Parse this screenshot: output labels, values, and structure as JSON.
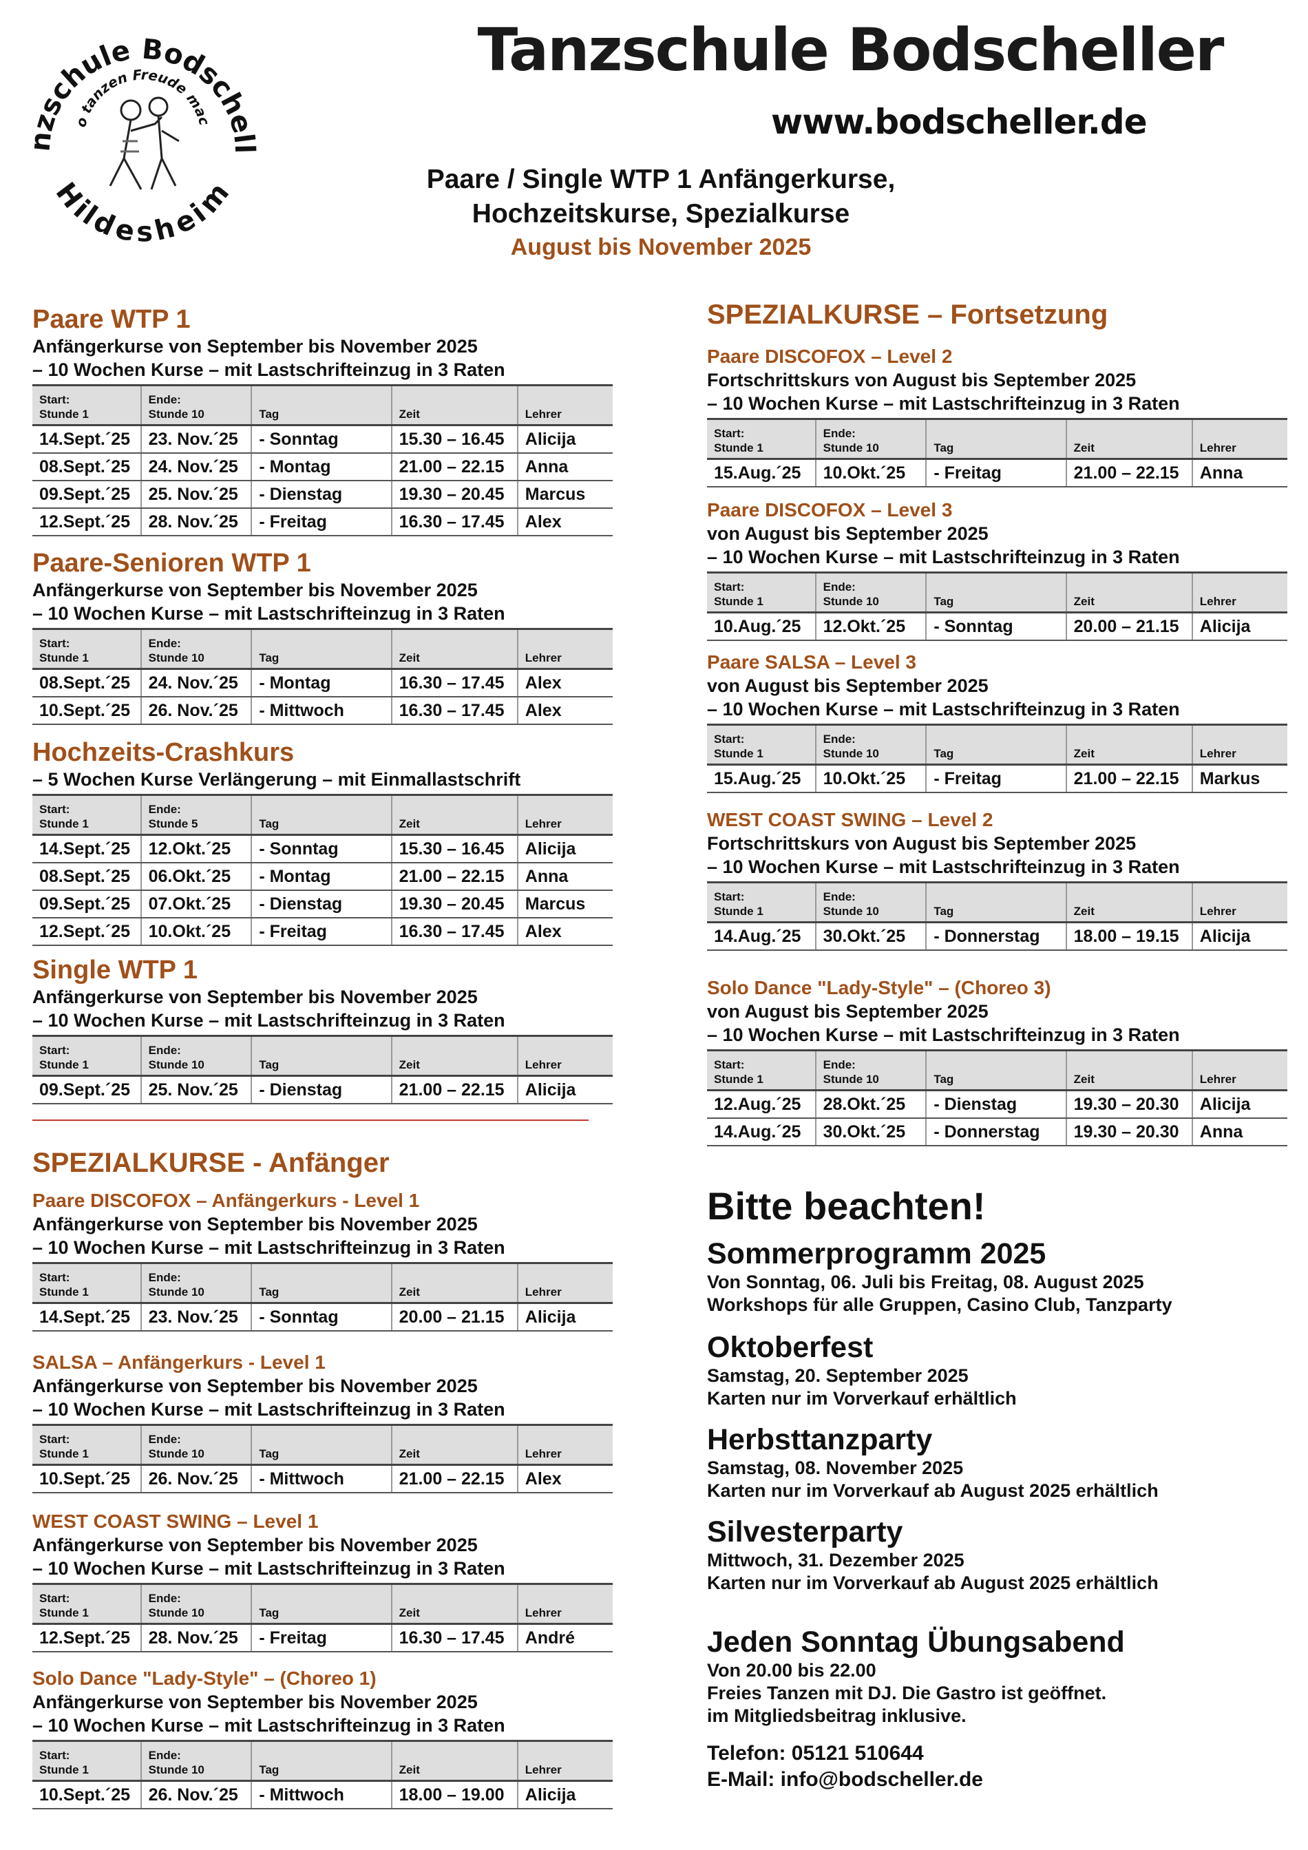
{
  "header": {
    "logo_top": "Tanzschule Bodscheller",
    "logo_motto": "Wo tanzen Freude macht",
    "logo_bottom": "Hildesheim",
    "title": "Tanzschule Bodscheller",
    "url": "www.bodscheller.de",
    "subtitle": [
      "Paare / Single WTP 1 Anfängerkurse,",
      "Hochzeitskurse, Spezialkurse"
    ],
    "period": "August bis November 2025"
  },
  "main_courses": [
    {
      "title": "Paare WTP 1",
      "lines": [
        "Anfängerkurse von September bis November 2025",
        "– 10 Wochen Kurse – mit Lastschrifteinzug in 3 Raten"
      ],
      "table": {
        "header": [
          [
            "Start:",
            "Stunde 1"
          ],
          [
            "Ende:",
            "Stunde 10"
          ],
          [
            "Tag"
          ],
          [
            "Zeit"
          ],
          [
            "Lehrer"
          ]
        ],
        "rows": [
          [
            "14.Sept.´25",
            "23. Nov.´25",
            "- Sonntag",
            "15.30 – 16.45",
            "Alicija"
          ],
          [
            "08.Sept.´25",
            "24. Nov.´25",
            "- Montag",
            "21.00 – 22.15",
            "Anna"
          ],
          [
            "09.Sept.´25",
            "25. Nov.´25",
            "- Dienstag",
            "19.30 – 20.45",
            "Marcus"
          ],
          [
            "12.Sept.´25",
            "28. Nov.´25",
            "- Freitag",
            "16.30 – 17.45",
            "Alex"
          ]
        ]
      }
    },
    {
      "title": "Paare-Senioren WTP 1",
      "lines": [
        "Anfängerkurse von September bis November 2025",
        "– 10 Wochen Kurse – mit Lastschrifteinzug in 3 Raten"
      ],
      "table": {
        "header": [
          [
            "Start:",
            "Stunde 1"
          ],
          [
            "Ende:",
            "Stunde 10"
          ],
          [
            "Tag"
          ],
          [
            "Zeit"
          ],
          [
            "Lehrer"
          ]
        ],
        "rows": [
          [
            "08.Sept.´25",
            "24. Nov.´25",
            "- Montag",
            "16.30 – 17.45",
            "Alex"
          ],
          [
            "10.Sept.´25",
            "26. Nov.´25",
            "- Mittwoch",
            "16.30 – 17.45",
            "Alex"
          ]
        ]
      }
    },
    {
      "title": "Hochzeits-Crashkurs",
      "lines": [
        "– 5 Wochen Kurse Verlängerung – mit Einmallastschrift"
      ],
      "table": {
        "header": [
          [
            "Start:",
            "Stunde 1"
          ],
          [
            "Ende:",
            "Stunde 5"
          ],
          [
            "Tag"
          ],
          [
            "Zeit"
          ],
          [
            "Lehrer"
          ]
        ],
        "rows": [
          [
            "14.Sept.´25",
            "12.Okt.´25",
            "- Sonntag",
            "15.30 – 16.45",
            "Alicija"
          ],
          [
            "08.Sept.´25",
            "06.Okt.´25",
            "- Montag",
            "21.00 – 22.15",
            "Anna"
          ],
          [
            "09.Sept.´25",
            "07.Okt.´25",
            "- Dienstag",
            "19.30 – 20.45",
            "Marcus"
          ],
          [
            "12.Sept.´25",
            "10.Okt.´25",
            "- Freitag",
            "16.30 – 17.45",
            "Alex"
          ]
        ]
      }
    },
    {
      "title": "Single WTP 1",
      "lines": [
        "Anfängerkurse von September bis November 2025",
        "– 10 Wochen Kurse – mit Lastschrifteinzug in 3 Raten"
      ],
      "table": {
        "header": [
          [
            "Start:",
            "Stunde 1"
          ],
          [
            "Ende:",
            "Stunde 10"
          ],
          [
            "Tag"
          ],
          [
            "Zeit"
          ],
          [
            "Lehrer"
          ]
        ],
        "rows": [
          [
            "09.Sept.´25",
            "25. Nov.´25",
            "- Dienstag",
            "21.00 – 22.15",
            "Alicija"
          ]
        ]
      }
    }
  ],
  "special_beginners": {
    "title": "SPEZIALKURSE - Anfänger",
    "courses": [
      {
        "title": "Paare DISCOFOX – Anfängerkurs - Level 1",
        "lines": [
          "Anfängerkurse von September bis November 2025",
          "– 10 Wochen Kurse – mit Lastschrifteinzug in 3 Raten"
        ],
        "table": {
          "header": [
            [
              "Start:",
              "Stunde 1"
            ],
            [
              "Ende:",
              "Stunde 10"
            ],
            [
              "Tag"
            ],
            [
              "Zeit"
            ],
            [
              "Lehrer"
            ]
          ],
          "rows": [
            [
              "14.Sept.´25",
              "23. Nov.´25",
              "- Sonntag",
              "20.00 – 21.15",
              "Alicija"
            ]
          ]
        }
      },
      {
        "title": "SALSA – Anfängerkurs - Level 1",
        "lines": [
          "Anfängerkurse von September bis November 2025",
          "– 10 Wochen Kurse – mit Lastschrifteinzug in 3 Raten"
        ],
        "table": {
          "header": [
            [
              "Start:",
              "Stunde 1"
            ],
            [
              "Ende:",
              "Stunde 10"
            ],
            [
              "Tag"
            ],
            [
              "Zeit"
            ],
            [
              "Lehrer"
            ]
          ],
          "rows": [
            [
              "10.Sept.´25",
              "26. Nov.´25",
              "- Mittwoch",
              "21.00 – 22.15",
              "Alex"
            ]
          ]
        }
      },
      {
        "title": "WEST COAST SWING – Level 1",
        "lines": [
          "Anfängerkurse von September bis November 2025",
          "– 10 Wochen Kurse – mit Lastschrifteinzug in 3 Raten"
        ],
        "table": {
          "header": [
            [
              "Start:",
              "Stunde 1"
            ],
            [
              "Ende:",
              "Stunde 10"
            ],
            [
              "Tag"
            ],
            [
              "Zeit"
            ],
            [
              "Lehrer"
            ]
          ],
          "rows": [
            [
              "12.Sept.´25",
              "28. Nov.´25",
              "- Freitag",
              "16.30 – 17.45",
              "André"
            ]
          ]
        }
      },
      {
        "title": "Solo Dance \"Lady-Style\" – (Choreo 1)",
        "lines": [
          "Anfängerkurse von September bis November 2025",
          "– 10 Wochen Kurse – mit Lastschrifteinzug in 3 Raten"
        ],
        "table": {
          "header": [
            [
              "Start:",
              "Stunde 1"
            ],
            [
              "Ende:",
              "Stunde 10"
            ],
            [
              "Tag"
            ],
            [
              "Zeit"
            ],
            [
              "Lehrer"
            ]
          ],
          "rows": [
            [
              "10.Sept.´25",
              "26. Nov.´25",
              "- Mittwoch",
              "18.00 – 19.00",
              "Alicija"
            ]
          ]
        }
      }
    ]
  },
  "special_continued": {
    "title": "SPEZIALKURSE – Fortsetzung",
    "courses": [
      {
        "title": "Paare DISCOFOX – Level 2",
        "lines": [
          "Fortschrittskurs von August bis September 2025",
          "– 10 Wochen Kurse – mit Lastschrifteinzug in 3 Raten"
        ],
        "table": {
          "header": [
            [
              "Start:",
              "Stunde 1"
            ],
            [
              "Ende:",
              "Stunde 10"
            ],
            [
              "Tag"
            ],
            [
              "Zeit"
            ],
            [
              "Lehrer"
            ]
          ],
          "rows": [
            [
              "15.Aug.´25",
              "10.Okt.´25",
              "- Freitag",
              "21.00 – 22.15",
              "Anna"
            ]
          ]
        }
      },
      {
        "title": "Paare DISCOFOX – Level 3",
        "lines": [
          "von August bis September 2025",
          "– 10 Wochen Kurse – mit Lastschrifteinzug in 3 Raten"
        ],
        "table": {
          "header": [
            [
              "Start:",
              "Stunde 1"
            ],
            [
              "Ende:",
              "Stunde 10"
            ],
            [
              "Tag"
            ],
            [
              "Zeit"
            ],
            [
              "Lehrer"
            ]
          ],
          "rows": [
            [
              "10.Aug.´25",
              "12.Okt.´25",
              "- Sonntag",
              "20.00 – 21.15",
              "Alicija"
            ]
          ]
        }
      },
      {
        "title": "Paare SALSA – Level 3",
        "lines": [
          "von August bis September 2025",
          "– 10 Wochen Kurse – mit Lastschrifteinzug in 3 Raten"
        ],
        "table": {
          "header": [
            [
              "Start:",
              "Stunde 1"
            ],
            [
              "Ende:",
              "Stunde 10"
            ],
            [
              "Tag"
            ],
            [
              "Zeit"
            ],
            [
              "Lehrer"
            ]
          ],
          "rows": [
            [
              "15.Aug.´25",
              "10.Okt.´25",
              "- Freitag",
              "21.00 – 22.15",
              "Markus"
            ]
          ]
        }
      },
      {
        "title": "WEST COAST SWING – Level 2",
        "lines": [
          "Fortschrittskurs von August bis September 2025",
          "– 10 Wochen Kurse – mit Lastschrifteinzug in 3 Raten"
        ],
        "table": {
          "header": [
            [
              "Start:",
              "Stunde 1"
            ],
            [
              "Ende:",
              "Stunde 10"
            ],
            [
              "Tag"
            ],
            [
              "Zeit"
            ],
            [
              "Lehrer"
            ]
          ],
          "rows": [
            [
              "14.Aug.´25",
              "30.Okt.´25",
              "- Donnerstag",
              "18.00 – 19.15",
              "Alicija"
            ]
          ]
        }
      },
      {
        "title": "Solo Dance \"Lady-Style\" – (Choreo 3)",
        "lines": [
          "von August bis September 2025",
          "– 10 Wochen Kurse – mit Lastschrifteinzug in 3 Raten"
        ],
        "table": {
          "header": [
            [
              "Start:",
              "Stunde 1"
            ],
            [
              "Ende:",
              "Stunde 10"
            ],
            [
              "Tag"
            ],
            [
              "Zeit"
            ],
            [
              "Lehrer"
            ]
          ],
          "rows": [
            [
              "12.Aug.´25",
              "28.Okt.´25",
              "- Dienstag",
              "19.30 – 20.30",
              "Alicija"
            ],
            [
              "14.Aug.´25",
              "30.Okt.´25",
              "- Donnerstag",
              "19.30 – 20.30",
              "Anna"
            ]
          ]
        }
      }
    ]
  },
  "notes": {
    "title": "Bitte beachten!",
    "items": [
      {
        "title": "Sommerprogramm 2025",
        "lines": [
          "Von Sonntag, 06. Juli bis Freitag, 08. August 2025",
          "Workshops für alle Gruppen, Casino Club, Tanzparty"
        ]
      },
      {
        "title": "Oktoberfest",
        "lines": [
          "Samstag, 20. September 2025",
          "Karten nur im Vorverkauf erhältlich"
        ]
      },
      {
        "title": "Herbsttanzparty",
        "lines": [
          "Samstag, 08. November 2025",
          "Karten nur im Vorverkauf ab August 2025 erhältlich"
        ]
      },
      {
        "title": "Silvesterparty",
        "lines": [
          "Mittwoch, 31. Dezember 2025",
          "Karten nur im Vorverkauf ab August 2025 erhältlich"
        ]
      },
      {
        "title": "Jeden Sonntag Übungsabend",
        "lines": [
          "Von 20.00 bis 22.00",
          "Freies Tanzen mit DJ. Die Gastro ist geöffnet.",
          "im Mitgliedsbeitrag inklusive."
        ]
      }
    ],
    "contact": [
      "Telefon: 05121 510644",
      "E-Mail: info@bodscheller.de"
    ]
  }
}
